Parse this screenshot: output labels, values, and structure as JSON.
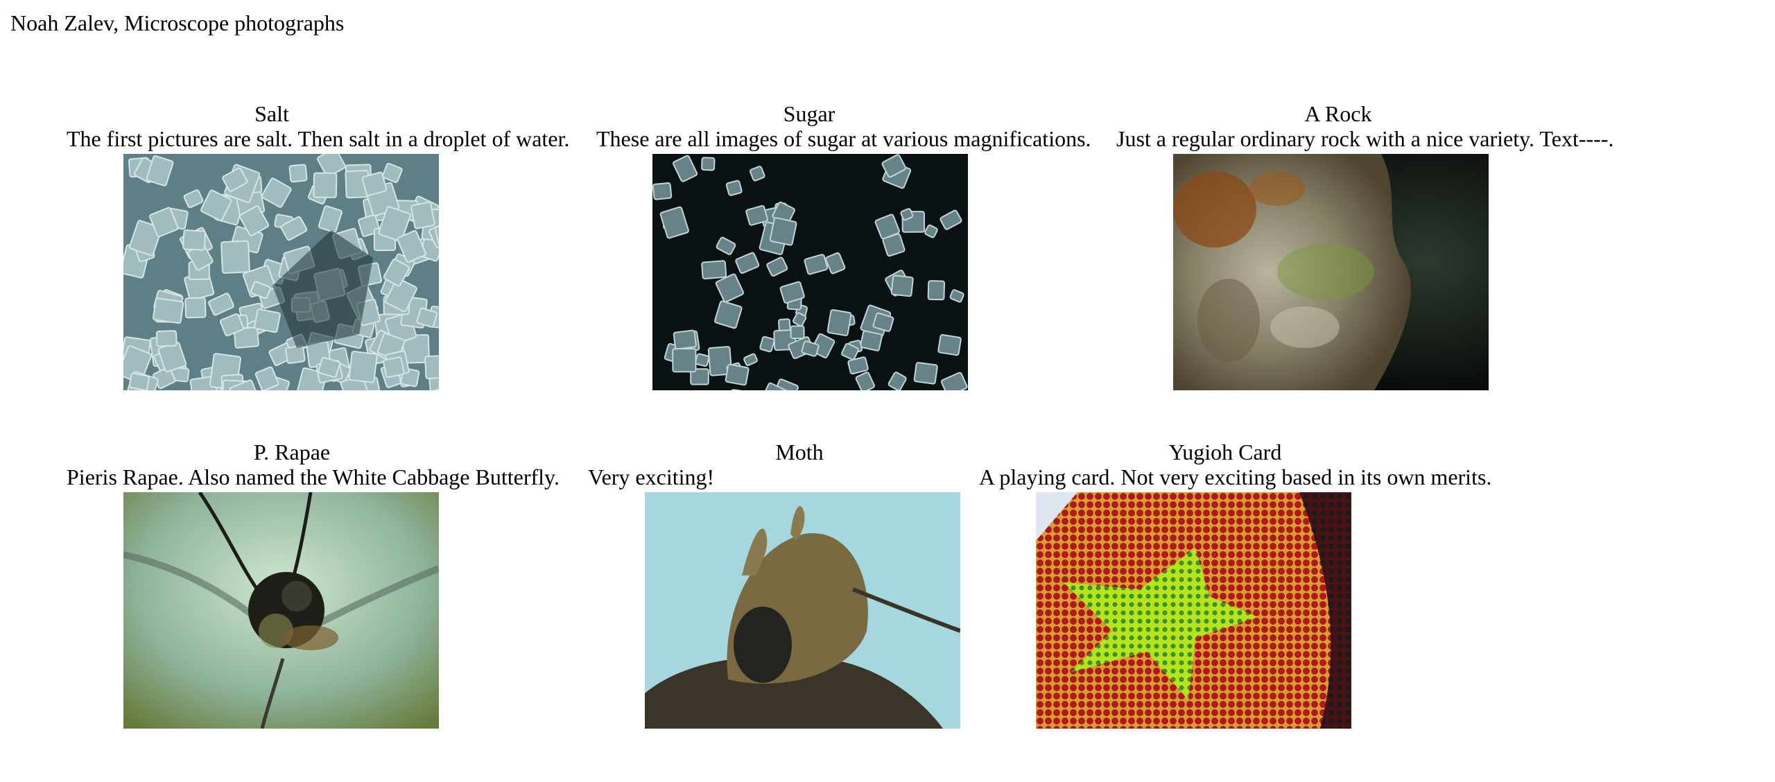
{
  "page": {
    "title": "Noah Zalev, Microscope photographs"
  },
  "gallery": [
    {
      "title": "Salt",
      "description": "The first pictures are salt. Then salt in a droplet of water.",
      "photo_alt": "Salt crystals under microscope"
    },
    {
      "title": "Sugar",
      "description": "These are all images of sugar at various magnifications.",
      "photo_alt": "Sugar crystals under microscope"
    },
    {
      "title": "A Rock",
      "description": "Just a regular ordinary rock with a nice variety. Text----.",
      "photo_alt": "Rock surface under microscope"
    },
    {
      "title": "P. Rapae",
      "description": "Pieris Rapae. Also named the White Cabbage Butterfly.",
      "photo_alt": "Pieris rapae butterfly head under microscope"
    },
    {
      "title": "Moth",
      "description": "Very exciting!",
      "photo_alt": "Moth head under microscope"
    },
    {
      "title": "Yugioh Card",
      "description": "A playing card. Not very exciting based in its own merits.",
      "photo_alt": "Printed card dot pattern under microscope"
    }
  ]
}
